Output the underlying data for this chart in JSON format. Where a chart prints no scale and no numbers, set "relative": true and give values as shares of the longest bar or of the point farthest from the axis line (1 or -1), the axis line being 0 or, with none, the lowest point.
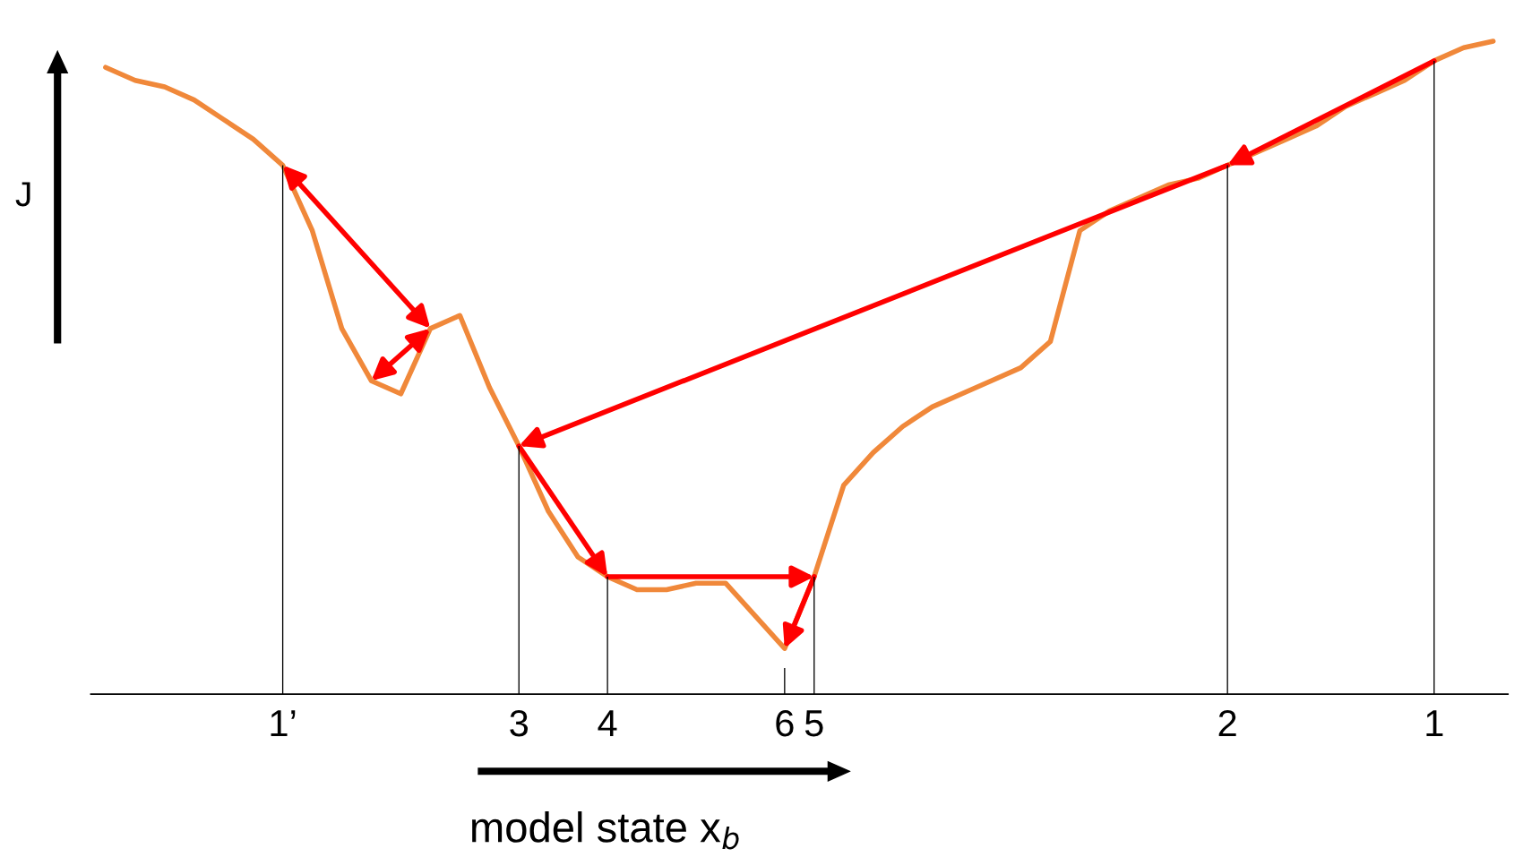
{
  "chart_data": {
    "type": "line",
    "relative": true,
    "ylabel": "J",
    "xlabel": "model state x$_{b}$",
    "categories": [
      null,
      null,
      null,
      null,
      null,
      null,
      "1’",
      null,
      null,
      null,
      null,
      null,
      null,
      null,
      "3",
      null,
      null,
      "4",
      null,
      null,
      null,
      null,
      null,
      "6",
      "5",
      null,
      null,
      null,
      null,
      null,
      null,
      null,
      null,
      null,
      null,
      null,
      null,
      null,
      "2",
      null,
      null,
      null,
      null,
      null,
      null,
      "1",
      null,
      null
    ],
    "series": [
      {
        "color": "#f0883a",
        "values": [
          0.96,
          0.94,
          0.93,
          0.91,
          0.88,
          0.85,
          0.81,
          0.71,
          0.56,
          0.48,
          0.46,
          0.56,
          0.58,
          0.47,
          0.38,
          0.28,
          0.21,
          0.18,
          0.16,
          0.16,
          0.17,
          0.17,
          0.12,
          0.07,
          0.18,
          0.32,
          0.37,
          0.41,
          0.44,
          0.46,
          0.48,
          0.5,
          0.54,
          0.71,
          0.74,
          0.76,
          0.78,
          0.79,
          0.81,
          0.83,
          0.85,
          0.87,
          0.9,
          0.92,
          0.94,
          0.97,
          0.99,
          1.0
        ]
      },
      {
        "type": "bar",
        "color": "#000000",
        "values": [
          null,
          null,
          null,
          null,
          null,
          null,
          0.81,
          null,
          null,
          null,
          null,
          null,
          null,
          null,
          0.38,
          null,
          null,
          0.18,
          null,
          null,
          null,
          null,
          null,
          0.04,
          0.18,
          null,
          null,
          null,
          null,
          null,
          null,
          null,
          null,
          null,
          null,
          null,
          null,
          null,
          0.81,
          null,
          null,
          null,
          null,
          null,
          null,
          0.97,
          null,
          null
        ]
      }
    ]
  }
}
